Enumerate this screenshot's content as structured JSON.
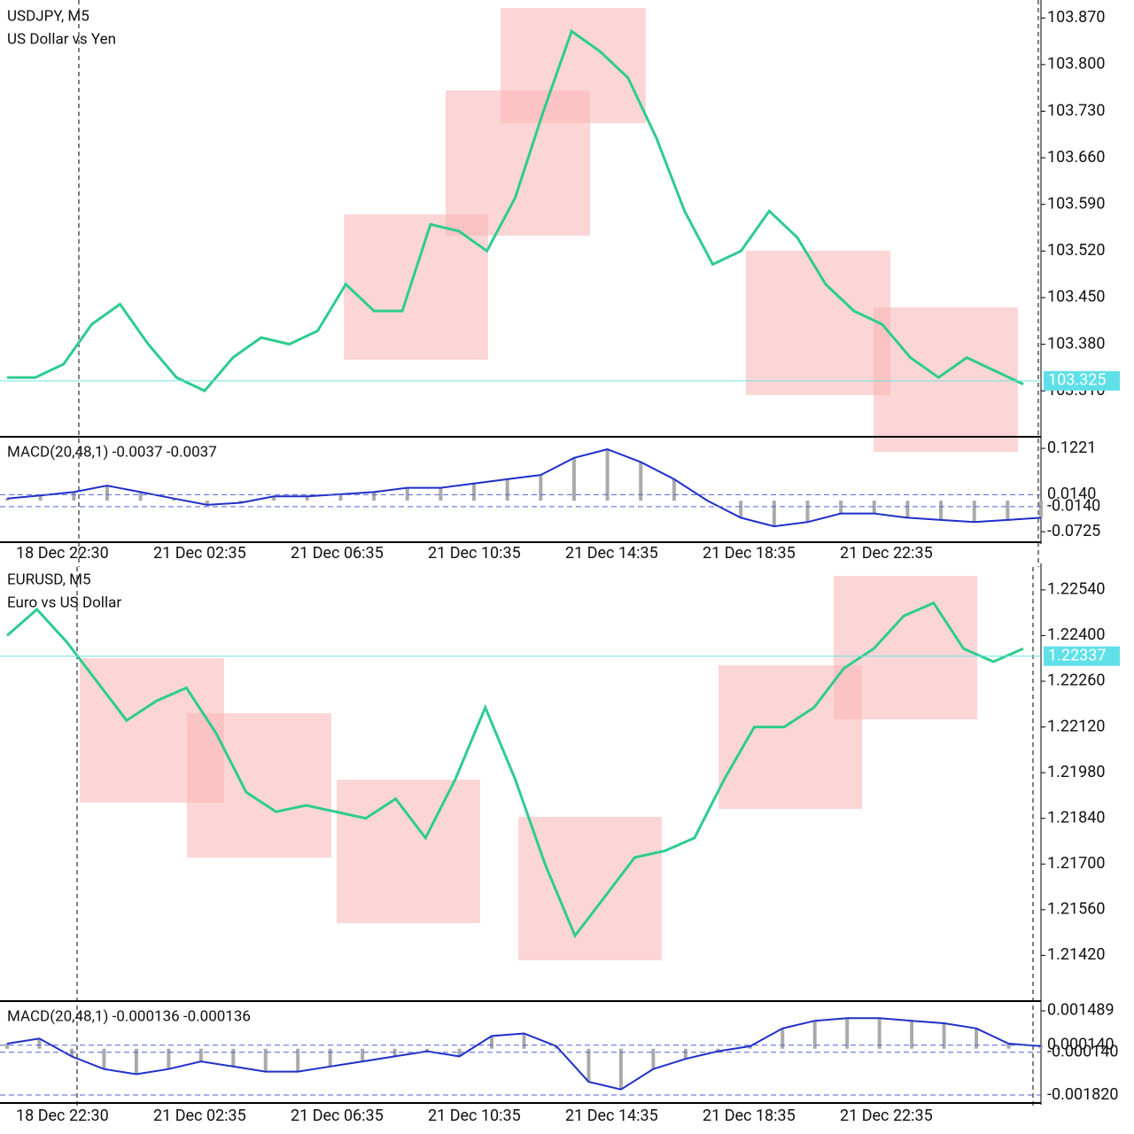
{
  "panels": [
    {
      "symbol": "USDJPY, M5",
      "description": "US Dollar vs Yen",
      "current_price": 103.325,
      "price_ylim": [
        103.241,
        103.897
      ],
      "price_ticks": [
        {
          "value": 103.87,
          "label": "103.870"
        },
        {
          "value": 103.8,
          "label": "103.800"
        },
        {
          "value": 103.73,
          "label": "103.730"
        },
        {
          "value": 103.66,
          "label": "103.660"
        },
        {
          "value": 103.59,
          "label": "103.590"
        },
        {
          "value": 103.52,
          "label": "103.520"
        },
        {
          "value": 103.45,
          "label": "103.450"
        },
        {
          "value": 103.38,
          "label": "103.380"
        },
        {
          "value": 103.31,
          "label": "103.310"
        }
      ],
      "close": [
        103.33,
        103.33,
        103.35,
        103.41,
        103.44,
        103.38,
        103.33,
        103.31,
        103.36,
        103.39,
        103.38,
        103.4,
        103.47,
        103.43,
        103.43,
        103.56,
        103.55,
        103.52,
        103.6,
        103.73,
        103.85,
        103.82,
        103.78,
        103.69,
        103.58,
        103.5,
        103.52,
        103.58,
        103.54,
        103.47,
        103.43,
        103.41,
        103.36,
        103.33,
        103.36,
        103.34,
        103.32
      ],
      "macd": {
        "label": "MACD(20,48,1) -0.0037 -0.0037",
        "ylim": [
          -0.097,
          0.145
        ],
        "ticks": [
          0.1221,
          {
            "value": 0.014,
            "label": "0.0140"
          },
          {
            "value": -0.014,
            "label": "-0.0140"
          },
          -0.0725
        ],
        "values": [
          0.005,
          0.012,
          0.02,
          0.035,
          0.02,
          0.005,
          -0.01,
          -0.005,
          0.01,
          0.01,
          0.015,
          0.02,
          0.03,
          0.03,
          0.04,
          0.05,
          0.06,
          0.1,
          0.12,
          0.09,
          0.05,
          0.0,
          -0.04,
          -0.06,
          -0.05,
          -0.03,
          -0.03,
          -0.04,
          -0.045,
          -0.05,
          -0.045,
          -0.04
        ]
      },
      "time_labels": [
        "18 Dec 22:30",
        "21 Dec 02:35",
        "21 Dec 06:35",
        "21 Dec 10:35",
        "21 Dec 14:35",
        "21 Dec 18:35",
        "21 Dec 22:35"
      ]
    },
    {
      "symbol": "EURUSD, M5",
      "description": "Euro vs US Dollar",
      "current_price": 1.22337,
      "price_ylim": [
        1.2128,
        1.22621
      ],
      "price_ticks": [
        {
          "value": 1.2254,
          "label": "1.22540"
        },
        {
          "value": 1.224,
          "label": "1.22400"
        },
        {
          "value": 1.2226,
          "label": "1.22260"
        },
        {
          "value": 1.2212,
          "label": "1.22120"
        },
        {
          "value": 1.2198,
          "label": "1.21980"
        },
        {
          "value": 1.2184,
          "label": "1.21840"
        },
        {
          "value": 1.217,
          "label": "1.21700"
        },
        {
          "value": 1.2156,
          "label": "1.21560"
        },
        {
          "value": 1.2142,
          "label": "1.21420"
        }
      ],
      "close": [
        1.224,
        1.2248,
        1.2238,
        1.2226,
        1.2214,
        1.222,
        1.2224,
        1.221,
        1.2192,
        1.2186,
        1.2188,
        1.2186,
        1.2184,
        1.219,
        1.2178,
        1.2196,
        1.2218,
        1.2196,
        1.217,
        1.2148,
        1.216,
        1.2172,
        1.2174,
        1.2178,
        1.2196,
        1.2212,
        1.2212,
        1.2218,
        1.223,
        1.2236,
        1.2246,
        1.225,
        1.2236,
        1.2232,
        1.2236
      ],
      "macd": {
        "label": "MACD(20,48,1) -0.000136 -0.000136",
        "ylim": [
          -0.002133,
          0.001802
        ],
        "ticks": [
          0.001489,
          {
            "value": 0.00014,
            "label": "0.000140"
          },
          {
            "value": -0.00014,
            "label": "-0.000140"
          },
          {
            "value": -0.00182,
            "label": "-0.001820"
          }
        ],
        "values": [
          0.0002,
          0.0004,
          -0.0003,
          -0.0008,
          -0.001,
          -0.0008,
          -0.0005,
          -0.0007,
          -0.0009,
          -0.0009,
          -0.0007,
          -0.0005,
          -0.0003,
          -0.0001,
          -0.0003,
          0.0005,
          0.0006,
          0.0001,
          -0.0013,
          -0.0016,
          -0.0008,
          -0.0004,
          -0.0001,
          0.0001,
          0.0008,
          0.0011,
          0.0012,
          0.0012,
          0.0011,
          0.001,
          0.0008,
          0.0002,
          0.0001
        ]
      },
      "time_labels": [
        "18 Dec 22:30",
        "21 Dec 02:35",
        "21 Dec 06:35",
        "21 Dec 10:35",
        "21 Dec 14:35",
        "21 Dec 18:35",
        "21 Dec 22:35"
      ]
    }
  ]
}
